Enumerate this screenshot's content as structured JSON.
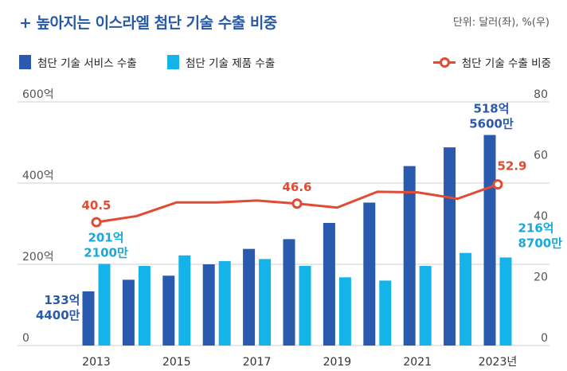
{
  "header": {
    "title": "+ 높아지는 이스라엘 첨단 기술 수출 비중",
    "unit": "단위: 달러(좌), %(우)"
  },
  "colors": {
    "services": "#2a5aad",
    "products": "#14b4ea",
    "share": "#e24a33",
    "title": "#2659a8",
    "axis": "#555555"
  },
  "chart_data": {
    "type": "bar",
    "categories": [
      "2013",
      "2014",
      "2015",
      "2016",
      "2017",
      "2018",
      "2019",
      "2020",
      "2021",
      "2022",
      "2023"
    ],
    "x_tick_labels": [
      "2013",
      "2015",
      "2017",
      "2019",
      "2021",
      "2023년"
    ],
    "left_axis": {
      "ylim": [
        0,
        600
      ],
      "ticks": [
        "0",
        "200억",
        "400억",
        "600억"
      ]
    },
    "right_axis": {
      "ylim": [
        0,
        80
      ],
      "ticks": [
        "0",
        "20",
        "40",
        "60",
        "80"
      ]
    },
    "series": [
      {
        "name": "첨단 기술 서비스 수출",
        "type": "bar",
        "axis": "left",
        "values": [
          133.4,
          162,
          172,
          200,
          238,
          262,
          302,
          352,
          442,
          488,
          518.56
        ]
      },
      {
        "name": "첨단 기술 제품 수출",
        "type": "bar",
        "axis": "left",
        "values": [
          201.21,
          196,
          222,
          208,
          213,
          196,
          168,
          160,
          196,
          228,
          216.87
        ]
      },
      {
        "name": "첨단 기술 수출 비중",
        "type": "line",
        "axis": "right",
        "values": [
          40.5,
          42.5,
          47.0,
          47.0,
          47.6,
          46.6,
          45.3,
          50.5,
          50.3,
          48.2,
          52.9
        ]
      }
    ],
    "annotations": [
      {
        "text": "133억\n4400만",
        "series": 0,
        "index": 0
      },
      {
        "text": "201억\n2100만",
        "series": 1,
        "index": 0
      },
      {
        "text": "518억\n5600만",
        "series": 0,
        "index": 10
      },
      {
        "text": "216억\n8700만",
        "series": 1,
        "index": 10
      },
      {
        "text": "40.5",
        "series": 2,
        "index": 0
      },
      {
        "text": "46.6",
        "series": 2,
        "index": 5
      },
      {
        "text": "52.9",
        "series": 2,
        "index": 10
      }
    ],
    "grid": "horizontal",
    "legend": "top"
  }
}
